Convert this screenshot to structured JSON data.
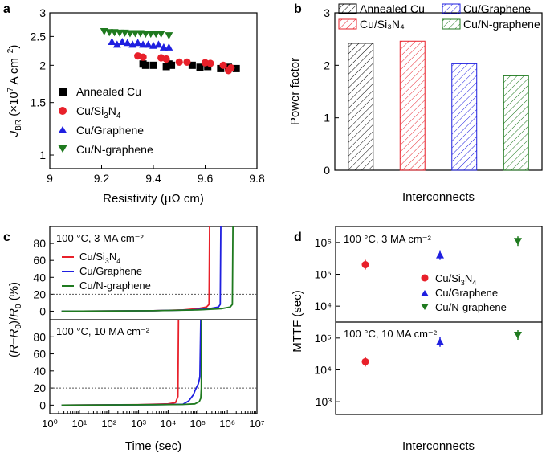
{
  "chart_data": [
    {
      "panel": "a",
      "type": "scatter",
      "xlabel": "Resistivity (µΩ cm)",
      "ylabel": "J_BR (×10^7 A cm^-2)",
      "xlim": [
        9,
        9.8
      ],
      "ylim": [
        0.9,
        3
      ],
      "x_ticks": [
        "9",
        "9.2",
        "9.4",
        "9.6",
        "9.8"
      ],
      "y_ticks": [
        "1",
        "1.5",
        "2",
        "2.5",
        "3"
      ],
      "legend_position": "center-left",
      "series": [
        {
          "name": "Annealed Cu",
          "marker": "square",
          "color": "#000000",
          "points": [
            [
              9.36,
              2.02
            ],
            [
              9.37,
              2.0
            ],
            [
              9.4,
              2.0
            ],
            [
              9.45,
              1.98
            ],
            [
              9.46,
              2.02
            ],
            [
              9.47,
              2.0
            ],
            [
              9.55,
              2.0
            ],
            [
              9.58,
              1.97
            ],
            [
              9.61,
              1.98
            ],
            [
              9.66,
              1.95
            ],
            [
              9.69,
              1.97
            ],
            [
              9.72,
              1.95
            ]
          ]
        },
        {
          "name": "Cu/Si3N4",
          "marker": "circle",
          "color": "#e8202a",
          "points": [
            [
              9.34,
              2.15
            ],
            [
              9.36,
              2.13
            ],
            [
              9.43,
              2.12
            ],
            [
              9.45,
              2.1
            ],
            [
              9.5,
              2.05
            ],
            [
              9.53,
              2.05
            ],
            [
              9.6,
              2.04
            ],
            [
              9.62,
              2.03
            ],
            [
              9.67,
              2.0
            ],
            [
              9.69,
              1.92
            ],
            [
              9.7,
              1.96
            ]
          ]
        },
        {
          "name": "Cu/Graphene",
          "marker": "triangle-up",
          "color": "#1f1fe0",
          "points": [
            [
              9.24,
              2.4
            ],
            [
              9.26,
              2.35
            ],
            [
              9.28,
              2.4
            ],
            [
              9.3,
              2.38
            ],
            [
              9.32,
              2.35
            ],
            [
              9.34,
              2.38
            ],
            [
              9.36,
              2.35
            ],
            [
              9.38,
              2.35
            ],
            [
              9.4,
              2.33
            ],
            [
              9.42,
              2.35
            ],
            [
              9.44,
              2.3
            ],
            [
              9.46,
              2.3
            ]
          ]
        },
        {
          "name": "Cu/N-graphene",
          "marker": "triangle-down",
          "color": "#1f7a1f",
          "points": [
            [
              9.21,
              2.6
            ],
            [
              9.23,
              2.58
            ],
            [
              9.25,
              2.58
            ],
            [
              9.27,
              2.57
            ],
            [
              9.29,
              2.57
            ],
            [
              9.31,
              2.56
            ],
            [
              9.33,
              2.56
            ],
            [
              9.35,
              2.56
            ],
            [
              9.37,
              2.55
            ],
            [
              9.39,
              2.55
            ],
            [
              9.41,
              2.55
            ],
            [
              9.43,
              2.55
            ],
            [
              9.46,
              2.52
            ]
          ]
        }
      ]
    },
    {
      "panel": "b",
      "type": "bar",
      "xlabel": "Interconnects",
      "ylabel": "Power factor",
      "ylim": [
        0,
        3
      ],
      "y_ticks": [
        "0",
        "1",
        "2",
        "3"
      ],
      "legend_position": "top",
      "categories": [
        "Annealed Cu",
        "Cu/Si3N4",
        "Cu/Graphene",
        "Cu/N-graphene"
      ],
      "legend_labels": [
        "Annealed Cu",
        "Cu/Si₃N₄",
        "Cu/Graphene",
        "Cu/N-graphene"
      ],
      "values": [
        2.42,
        2.46,
        2.03,
        1.8
      ],
      "colors": [
        "#000000",
        "#e8202a",
        "#1f1fe0",
        "#1f7a1f"
      ],
      "pattern": "hatched"
    },
    {
      "panel": "c",
      "type": "line",
      "xlabel": "Time (sec)",
      "ylabel": "(R−R0)/R0 (%)",
      "x_scale": "log",
      "xlim_exp": [
        0,
        7
      ],
      "ylim": [
        -10,
        100
      ],
      "y_ticks": [
        "0",
        "20",
        "40",
        "60",
        "80"
      ],
      "threshold_percent": 20,
      "subplots": [
        {
          "condition": "100 °C, 3 MA cm⁻²",
          "series": [
            {
              "name": "Cu/Si₃N₄",
              "color": "#e8202a",
              "points": [
                [
                  0.4,
                  0
                ],
                [
                  3.5,
                  0.5
                ],
                [
                  4.5,
                  1.5
                ],
                [
                  5.0,
                  3
                ],
                [
                  5.3,
                  5
                ],
                [
                  5.38,
                  8
                ],
                [
                  5.4,
                  100
                ]
              ]
            },
            {
              "name": "Cu/Graphene",
              "color": "#1f1fe0",
              "points": [
                [
                  0.4,
                  0
                ],
                [
                  3.5,
                  0.5
                ],
                [
                  4.8,
                  1.5
                ],
                [
                  5.4,
                  3
                ],
                [
                  5.7,
                  5
                ],
                [
                  5.76,
                  8
                ],
                [
                  5.78,
                  100
                ]
              ]
            },
            {
              "name": "Cu/N-graphene",
              "color": "#1f7a1f",
              "points": [
                [
                  0.4,
                  0
                ],
                [
                  3.5,
                  0.5
                ],
                [
                  5.0,
                  1.5
                ],
                [
                  5.8,
                  3
                ],
                [
                  6.1,
                  5
                ],
                [
                  6.17,
                  8
                ],
                [
                  6.19,
                  100
                ]
              ]
            }
          ]
        },
        {
          "condition": "100 °C, 10 MA cm⁻²",
          "series": [
            {
              "name": "Cu/Si₃N₄",
              "color": "#e8202a",
              "points": [
                [
                  0.4,
                  0
                ],
                [
                  3.0,
                  0.5
                ],
                [
                  4.0,
                  1.5
                ],
                [
                  4.25,
                  3
                ],
                [
                  4.33,
                  10
                ],
                [
                  4.35,
                  100
                ]
              ]
            },
            {
              "name": "Cu/Graphene",
              "color": "#1f1fe0",
              "points": [
                [
                  0.4,
                  0
                ],
                [
                  3.5,
                  0.5
                ],
                [
                  4.5,
                  1
                ],
                [
                  4.7,
                  5
                ],
                [
                  4.85,
                  12
                ],
                [
                  4.92,
                  18
                ],
                [
                  5.02,
                  25
                ],
                [
                  5.07,
                  33
                ],
                [
                  5.1,
                  100
                ]
              ]
            },
            {
              "name": "Cu/N-graphene",
              "color": "#1f7a1f",
              "points": [
                [
                  0.4,
                  0
                ],
                [
                  3.5,
                  0.5
                ],
                [
                  4.5,
                  0.8
                ],
                [
                  4.9,
                  1.5
                ],
                [
                  5.05,
                  4
                ],
                [
                  5.1,
                  8
                ],
                [
                  5.12,
                  20
                ],
                [
                  5.13,
                  100
                ]
              ]
            }
          ]
        }
      ]
    },
    {
      "panel": "d",
      "type": "scatter",
      "xlabel": "Interconnects",
      "ylabel": "MTTF (sec)",
      "y_scale": "log",
      "subplots": [
        {
          "condition": "100 °C, 3 MA cm⁻²",
          "y_ticks_exp": [
            4,
            5,
            6
          ],
          "ylim_exp": [
            3.5,
            6.5
          ],
          "points": [
            {
              "name": "Cu/Si₃N₄",
              "marker": "circle",
              "color": "#e8202a",
              "value": 200000
            },
            {
              "name": "Cu/Graphene",
              "marker": "triangle-up",
              "color": "#1f1fe0",
              "value": 400000
            },
            {
              "name": "Cu/N-graphene",
              "marker": "triangle-down",
              "color": "#1f7a1f",
              "value": 1100000
            }
          ]
        },
        {
          "condition": "100 °C, 10 MA cm⁻²",
          "y_ticks_exp": [
            3,
            4,
            5
          ],
          "ylim_exp": [
            2.6,
            5.5
          ],
          "points": [
            {
              "name": "Cu/Si₃N₄",
              "color": "#e8202a",
              "value": 18000
            },
            {
              "name": "Cu/Graphene",
              "color": "#1f1fe0",
              "value": 75000
            },
            {
              "name": "Cu/N-graphene",
              "color": "#1f7a1f",
              "value": 125000
            }
          ]
        }
      ]
    }
  ],
  "panels": {
    "a": {
      "letter": "a"
    },
    "b": {
      "letter": "b"
    },
    "c": {
      "letter": "c"
    },
    "d": {
      "letter": "d"
    }
  }
}
